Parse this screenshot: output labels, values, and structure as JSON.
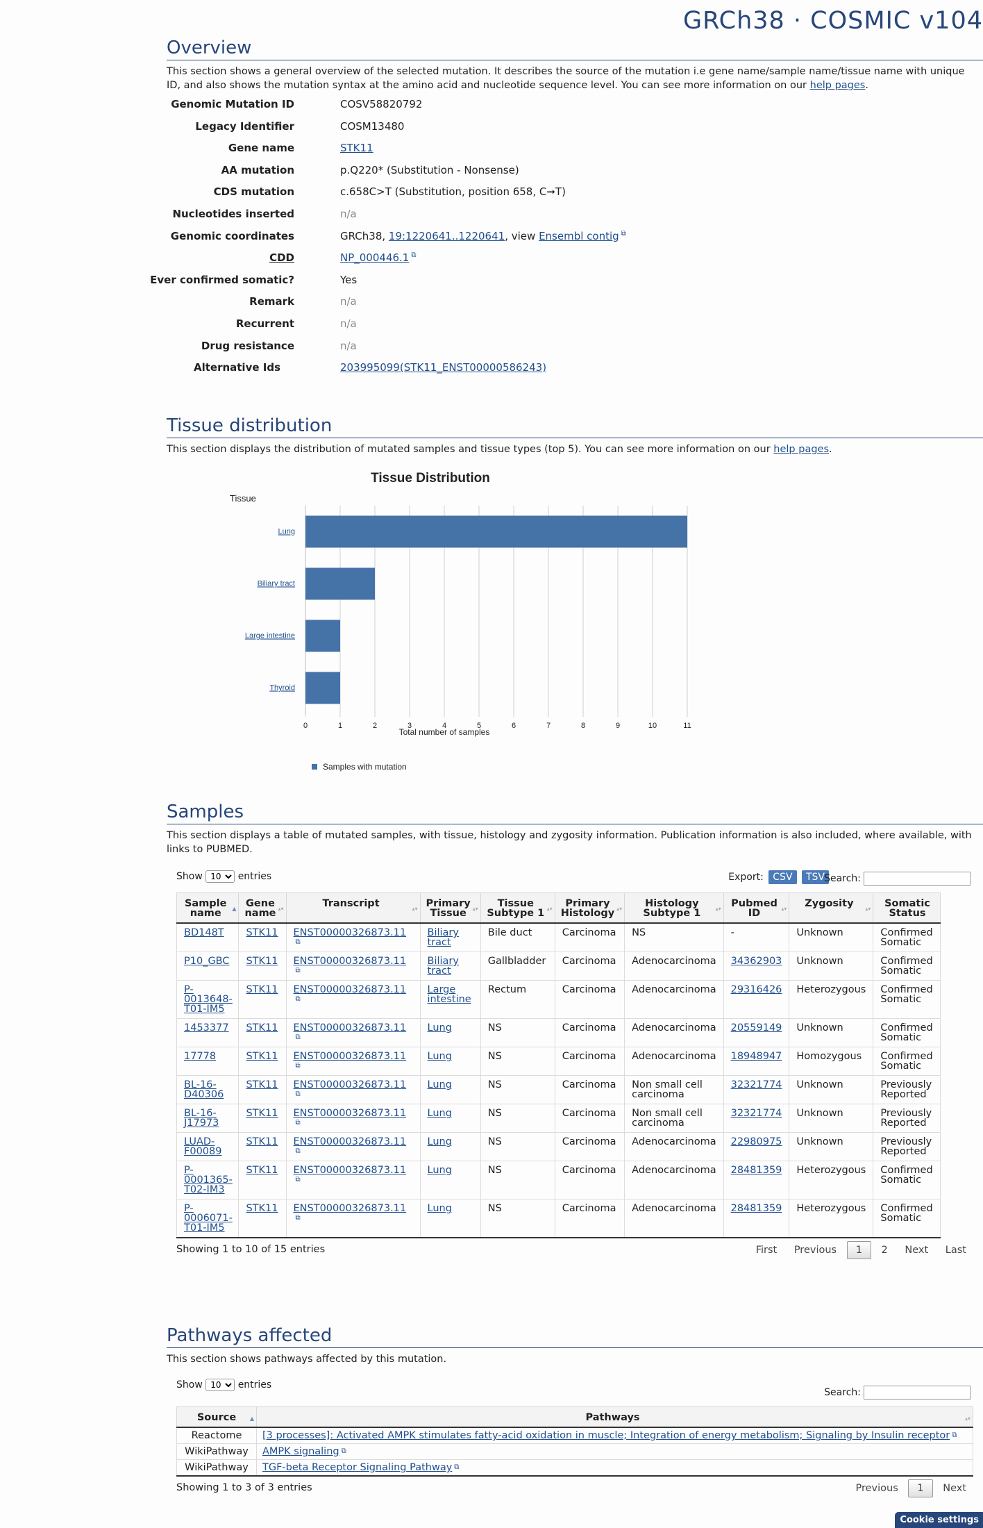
{
  "header": {
    "build_title": "GRCh38 · COSMIC v104"
  },
  "overview": {
    "title": "Overview",
    "description_pre": "This section shows a general overview of the selected mutation. It describes the source of the mutation i.e gene name/sample name/tissue name with unique ID, and also shows the mutation syntax at the amino acid and nucleotide sequence level. You can see more information on our ",
    "help_link": "help pages",
    "description_post": ".",
    "genomic_mutation_id_label": "Genomic Mutation ID",
    "genomic_mutation_id": "COSV58820792",
    "legacy_identifier_label": "Legacy Identifier",
    "legacy_identifier": "COSM13480",
    "gene_name_label": "Gene name",
    "gene_name": "STK11",
    "aa_mutation_label": "AA mutation",
    "aa_mutation": "p.Q220* (Substitution - Nonsense)",
    "cds_mutation_label": "CDS mutation",
    "cds_mutation": "c.658C>T (Substitution, position 658, C➞T)",
    "nucleotides_inserted_label": "Nucleotides inserted",
    "nucleotides_inserted": "n/a",
    "genomic_coordinates_label": "Genomic coordinates",
    "genomic_coordinates_pre": "GRCh38, ",
    "genomic_coordinates_link": "19:1220641..1220641",
    "genomic_coordinates_mid": ", view ",
    "ensembl_link": "Ensembl contig",
    "cdd_label": "CDD",
    "cdd": "NP_000446.1",
    "ever_confirmed_label": "Ever confirmed somatic?",
    "ever_confirmed": "Yes",
    "remark_label": "Remark",
    "remark": "n/a",
    "recurrent_label": "Recurrent",
    "recurrent": "n/a",
    "drug_resistance_label": "Drug resistance",
    "drug_resistance": "n/a",
    "alternative_ids_label": "Alternative Ids",
    "alternative_ids": "203995099(STK11_ENST00000586243)"
  },
  "tissue": {
    "title": "Tissue distribution",
    "description_pre": "This section displays the distribution of mutated samples and tissue types (top 5). You can see more information on our ",
    "help_link": "help pages",
    "description_post": "."
  },
  "chart_data": {
    "type": "bar",
    "orientation": "horizontal",
    "title": "Tissue Distribution",
    "ylabel": "Tissue",
    "xlabel": "Total number of samples",
    "categories": [
      "Lung",
      "Biliary tract",
      "Large intestine",
      "Thyroid"
    ],
    "series": [
      {
        "name": "Samples with mutation",
        "values": [
          11,
          2,
          1,
          1
        ]
      }
    ],
    "xlim": [
      0,
      11
    ],
    "xticks": [
      0,
      1,
      2,
      3,
      4,
      5,
      6,
      7,
      8,
      9,
      10,
      11
    ],
    "grid": true,
    "legend_position": "bottom-left",
    "bar_color": "#4572a7"
  },
  "samples": {
    "title": "Samples",
    "description": "This section displays a table of mutated samples, with tissue, histology and zygosity information. Publication information is also included, where available, with links to PUBMED.",
    "show_label": "Show",
    "entries_label": "entries",
    "page_size": "10",
    "export_label": "Export:",
    "csv_label": "CSV",
    "tsv_label": "TSV",
    "search_label": "Search:",
    "headers": {
      "sample_name": "Sample name",
      "gene_name": "Gene name",
      "transcript": "Transcript",
      "primary_tissue": "Primary Tissue",
      "tissue_subtype": "Tissue Subtype 1",
      "primary_histology": "Primary Histology",
      "histology_subtype": "Histology Subtype 1",
      "pubmed_id": "Pubmed ID",
      "zygosity": "Zygosity",
      "somatic_status": "Somatic Status"
    },
    "rows": [
      {
        "sample": "BD148T",
        "gene": "STK11",
        "transcript": "ENST00000326873.11",
        "tissue": "Biliary tract",
        "subtype": "Bile duct",
        "histology": "Carcinoma",
        "hist_subtype": "NS",
        "pubmed": "-",
        "zygosity": "Unknown",
        "status": "Confirmed Somatic"
      },
      {
        "sample": "P10_GBC",
        "gene": "STK11",
        "transcript": "ENST00000326873.11",
        "tissue": "Biliary tract",
        "subtype": "Gallbladder",
        "histology": "Carcinoma",
        "hist_subtype": "Adenocarcinoma",
        "pubmed": "34362903",
        "zygosity": "Unknown",
        "status": "Confirmed Somatic"
      },
      {
        "sample": "P-0013648-T01-IM5",
        "gene": "STK11",
        "transcript": "ENST00000326873.11",
        "tissue": "Large intestine",
        "subtype": "Rectum",
        "histology": "Carcinoma",
        "hist_subtype": "Adenocarcinoma",
        "pubmed": "29316426",
        "zygosity": "Heterozygous",
        "status": "Confirmed Somatic"
      },
      {
        "sample": "1453377",
        "gene": "STK11",
        "transcript": "ENST00000326873.11",
        "tissue": "Lung",
        "subtype": "NS",
        "histology": "Carcinoma",
        "hist_subtype": "Adenocarcinoma",
        "pubmed": "20559149",
        "zygosity": "Unknown",
        "status": "Confirmed Somatic"
      },
      {
        "sample": "17778",
        "gene": "STK11",
        "transcript": "ENST00000326873.11",
        "tissue": "Lung",
        "subtype": "NS",
        "histology": "Carcinoma",
        "hist_subtype": "Adenocarcinoma",
        "pubmed": "18948947",
        "zygosity": "Homozygous",
        "status": "Confirmed Somatic"
      },
      {
        "sample": "BL-16-D40306",
        "gene": "STK11",
        "transcript": "ENST00000326873.11",
        "tissue": "Lung",
        "subtype": "NS",
        "histology": "Carcinoma",
        "hist_subtype": "Non small cell carcinoma",
        "pubmed": "32321774",
        "zygosity": "Unknown",
        "status": "Previously Reported"
      },
      {
        "sample": "BL-16-J17973",
        "gene": "STK11",
        "transcript": "ENST00000326873.11",
        "tissue": "Lung",
        "subtype": "NS",
        "histology": "Carcinoma",
        "hist_subtype": "Non small cell carcinoma",
        "pubmed": "32321774",
        "zygosity": "Unknown",
        "status": "Previously Reported"
      },
      {
        "sample": "LUAD-F00089",
        "gene": "STK11",
        "transcript": "ENST00000326873.11",
        "tissue": "Lung",
        "subtype": "NS",
        "histology": "Carcinoma",
        "hist_subtype": "Adenocarcinoma",
        "pubmed": "22980975",
        "zygosity": "Unknown",
        "status": "Previously Reported"
      },
      {
        "sample": "P-0001365-T02-IM3",
        "gene": "STK11",
        "transcript": "ENST00000326873.11",
        "tissue": "Lung",
        "subtype": "NS",
        "histology": "Carcinoma",
        "hist_subtype": "Adenocarcinoma",
        "pubmed": "28481359",
        "zygosity": "Heterozygous",
        "status": "Confirmed Somatic"
      },
      {
        "sample": "P-0006071-T01-IM5",
        "gene": "STK11",
        "transcript": "ENST00000326873.11",
        "tissue": "Lung",
        "subtype": "NS",
        "histology": "Carcinoma",
        "hist_subtype": "Adenocarcinoma",
        "pubmed": "28481359",
        "zygosity": "Heterozygous",
        "status": "Confirmed Somatic"
      }
    ],
    "info": "Showing 1 to 10 of 15 entries",
    "pagination": {
      "first": "First",
      "previous": "Previous",
      "page1": "1",
      "page2": "2",
      "next": "Next",
      "last": "Last"
    }
  },
  "pathways": {
    "title": "Pathways affected",
    "description": "This section shows pathways affected by this mutation.",
    "show_label": "Show",
    "entries_label": "entries",
    "page_size": "10",
    "search_label": "Search:",
    "headers": {
      "source": "Source",
      "pathways": "Pathways"
    },
    "rows": [
      {
        "source": "Reactome",
        "pathway": "[3 processes]: Activated AMPK stimulates fatty-acid oxidation in muscle; Integration of energy metabolism; Signaling by Insulin receptor"
      },
      {
        "source": "WikiPathway",
        "pathway": "AMPK signaling"
      },
      {
        "source": "WikiPathway",
        "pathway": "TGF-beta Receptor Signaling Pathway"
      }
    ],
    "info": "Showing 1 to 3 of 3 entries",
    "pagination": {
      "previous": "Previous",
      "page1": "1",
      "next": "Next"
    }
  },
  "cookie": {
    "label": "Cookie settings"
  }
}
